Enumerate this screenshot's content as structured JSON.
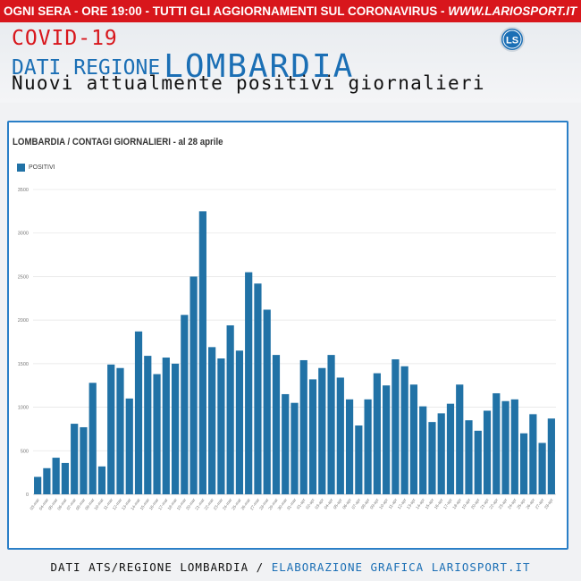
{
  "header": {
    "banner_text": "OGNI SERA - ORE 19:00 - TUTTI GLI AGGIORNAMENTI SUL CORONAVIRUS - ",
    "banner_site": "WWW.LARIOSPORT.IT",
    "title_line1": "COVID-19",
    "title_line2_prefix": "DATI REGIONE",
    "title_line2_region": "LOMBARDIA",
    "title_line3": "Nuovi attualmente positivi giornalieri",
    "logo_text": "LS",
    "brand_color": "#d8161c",
    "accent_color": "#1b6fb5"
  },
  "footer": {
    "source": "DATI ATS/REGIONE LOMBARDIA / ",
    "credit": "ELABORAZIONE GRAFICA LARIOSPORT.IT"
  },
  "chart_data": {
    "type": "bar",
    "title": "LOMBARDIA / CONTAGI GIORNALIERI - al 28 aprile",
    "xlabel": "",
    "ylabel": "",
    "ylim": [
      0,
      3500
    ],
    "yticks": [
      0,
      500,
      1000,
      1500,
      2000,
      2500,
      3000,
      3500
    ],
    "grid": true,
    "legend_position": "top-left",
    "bar_color": "#2172a6",
    "categories": [
      "03-mar",
      "04-mar",
      "05-mar",
      "06-mar",
      "07-mar",
      "08-mar",
      "09-mar",
      "10-mar",
      "11-mar",
      "12-mar",
      "13-mar",
      "14-mar",
      "15-mar",
      "16-mar",
      "17-mar",
      "18-mar",
      "19-mar",
      "20-mar",
      "21-mar",
      "22-mar",
      "23-mar",
      "24-mar",
      "25-mar",
      "26-mar",
      "27-mar",
      "28-mar",
      "29-mar",
      "30-mar",
      "31-mar",
      "01-apr",
      "02-apr",
      "03-apr",
      "04-apr",
      "05-apr",
      "06-apr",
      "07-apr",
      "08-apr",
      "09-apr",
      "10-apr",
      "11-apr",
      "12-apr",
      "13-apr",
      "14-apr",
      "15-apr",
      "16-apr",
      "17-apr",
      "18-apr",
      "19-apr",
      "20-apr",
      "21-apr",
      "22-apr",
      "23-apr",
      "24-apr",
      "25-apr",
      "26-apr",
      "27-apr",
      "28-apr"
    ],
    "series": [
      {
        "name": "POSITIVI",
        "values": [
          200,
          300,
          420,
          360,
          810,
          770,
          1280,
          320,
          1490,
          1450,
          1100,
          1870,
          1590,
          1380,
          1570,
          1500,
          2060,
          2500,
          3250,
          1690,
          1560,
          1940,
          1650,
          2550,
          2420,
          2120,
          1600,
          1150,
          1050,
          1540,
          1320,
          1450,
          1600,
          1340,
          1090,
          790,
          1090,
          1390,
          1250,
          1550,
          1470,
          1260,
          1010,
          830,
          930,
          1040,
          1260,
          850,
          730,
          960,
          1160,
          1070,
          1090,
          700,
          920,
          590,
          870
        ]
      }
    ]
  }
}
